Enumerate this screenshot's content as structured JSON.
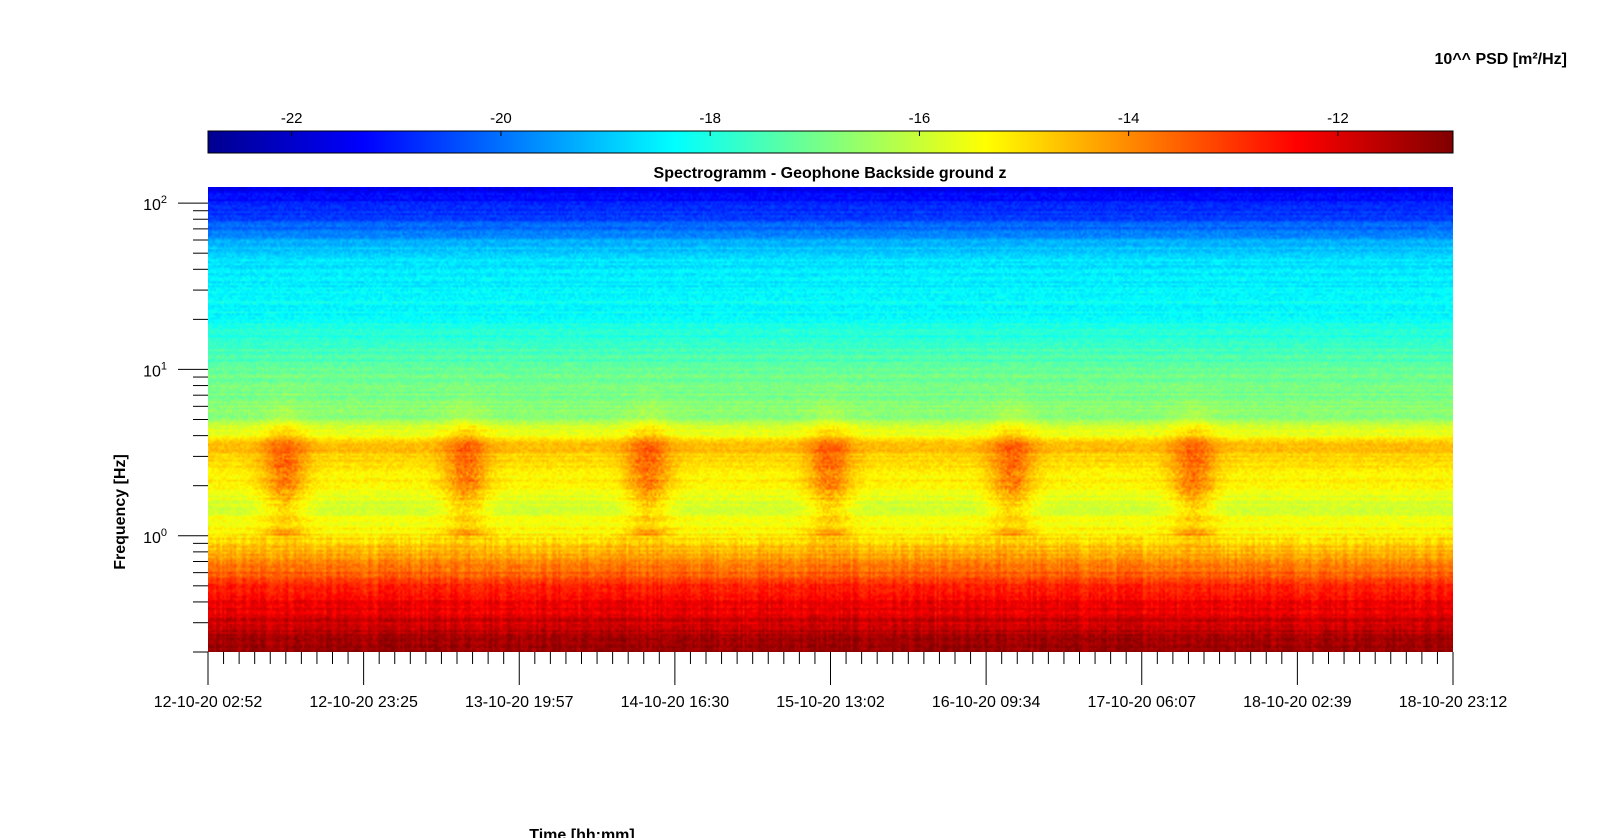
{
  "chart_data": {
    "type": "heatmap",
    "title": "Spectrogramm - Geophone Backside ground z",
    "xlabel": "Time [hh:mm]",
    "ylabel": "Frequency [Hz]",
    "y_scale": "log",
    "ylim": [
      0.2,
      125
    ],
    "xlim": [
      "12-10-20 02:52",
      "18-10-20 23:12"
    ],
    "x_ticks": [
      "12-10-20 02:52",
      "12-10-20 23:25",
      "13-10-20 19:57",
      "14-10-20 16:30",
      "15-10-20 13:02",
      "16-10-20 09:34",
      "17-10-20 06:07",
      "18-10-20 02:39",
      "18-10-20 23:12"
    ],
    "y_ticks": [
      {
        "value": 1,
        "base": "10",
        "exp": "0"
      },
      {
        "value": 10,
        "base": "10",
        "exp": "1"
      },
      {
        "value": 100,
        "base": "10",
        "exp": "2"
      }
    ],
    "colorbar": {
      "label": "10^^ PSD [m²/Hz]",
      "range": [
        -22.8,
        -10.9
      ],
      "ticks": [
        "-22",
        "-20",
        "-18",
        "-16",
        "-14",
        "-12"
      ],
      "colormap": "jet"
    },
    "psd_profile": {
      "frequency_hz": [
        0.2,
        0.3,
        0.5,
        0.75,
        1.0,
        1.5,
        3.5,
        5,
        10,
        20,
        30,
        50,
        80,
        125
      ],
      "log10_psd": [
        -11.2,
        -11.8,
        -12.8,
        -14.3,
        -15.2,
        -15.8,
        -14.6,
        -16.6,
        -17.2,
        -18.2,
        -18.4,
        -18.8,
        -20.5,
        -21.6
      ]
    },
    "activity_bursts": {
      "band_hz": [
        1.2,
        4.5
      ],
      "peak_log10_psd": -13.6,
      "centers": [
        "12-10-20 13:00",
        "13-10-20 12:00",
        "14-10-20 12:00",
        "15-10-20 12:00",
        "16-10-20 12:00",
        "17-10-20 12:00"
      ]
    }
  }
}
